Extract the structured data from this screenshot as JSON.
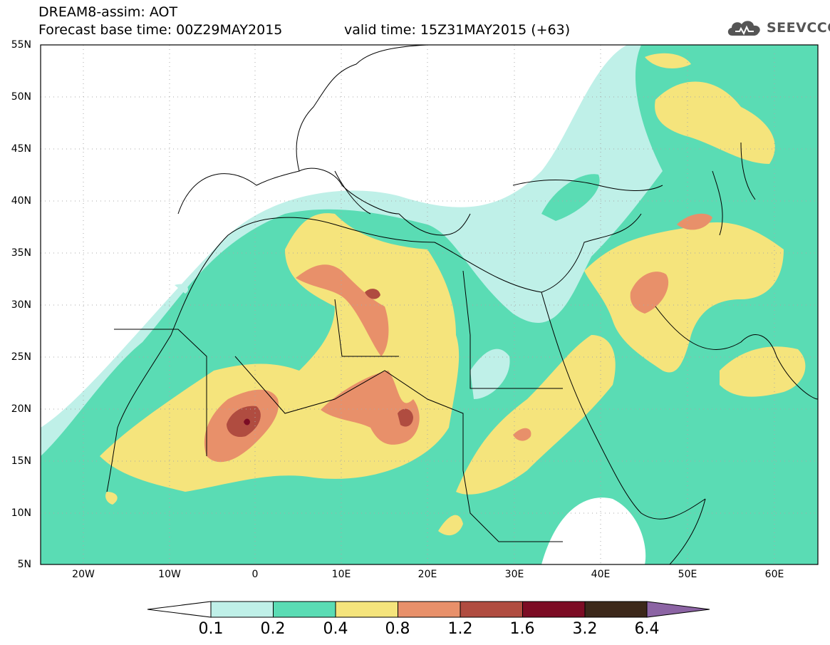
{
  "header": {
    "title": "DREAM8-assim: AOT",
    "base_time": "Forecast base time: 00Z29MAY2015",
    "valid_time": "valid time: 15Z31MAY2015 (+63)",
    "logo_text": "SEEVCCC"
  },
  "map": {
    "lat_labels": [
      "55N",
      "50N",
      "45N",
      "40N",
      "35N",
      "30N",
      "25N",
      "20N",
      "15N",
      "10N",
      "5N"
    ],
    "lon_labels": [
      "20W",
      "10W",
      "0",
      "10E",
      "20E",
      "30E",
      "40E",
      "50E",
      "60E"
    ],
    "extent": {
      "lon_min": -25,
      "lon_max": 65,
      "lat_min": 5,
      "lat_max": 55
    },
    "grid": "dotted"
  },
  "colorbar": {
    "ticks": [
      "0.1",
      "0.2",
      "0.4",
      "0.8",
      "1.2",
      "1.6",
      "3.2",
      "6.4"
    ],
    "colors": [
      "#ffffff",
      "#bff0e8",
      "#5adcb4",
      "#f5e47c",
      "#e8906a",
      "#b04c40",
      "#7c0c24",
      "#3c281a",
      "#8c64a4"
    ]
  }
}
